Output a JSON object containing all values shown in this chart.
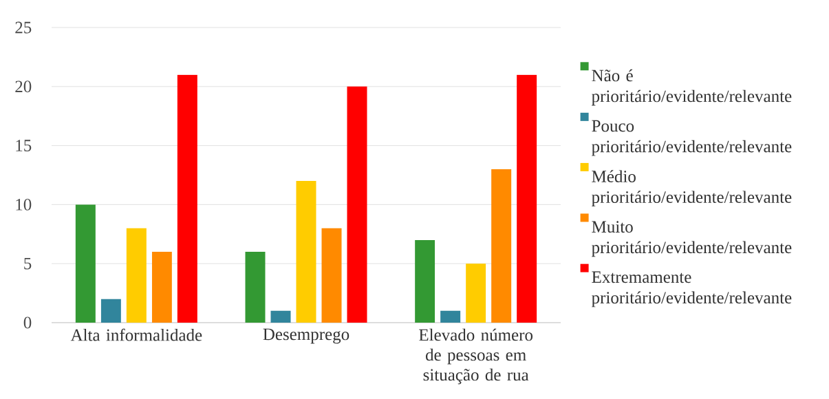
{
  "chart_data": {
    "type": "bar",
    "categories": [
      "Alta informalidade",
      "Desemprego",
      "Elevado número de pessoas em situação de rua"
    ],
    "series": [
      {
        "name": "Não é prioritário/evidente/relevante",
        "color": "#339933",
        "values": [
          10,
          6,
          7
        ]
      },
      {
        "name": "Pouco prioritário/evidente/relevante",
        "color": "#31859c",
        "values": [
          2,
          1,
          1
        ]
      },
      {
        "name": "Médio prioritário/evidente/relevante",
        "color": "#ffcc00",
        "values": [
          8,
          12,
          5
        ]
      },
      {
        "name": "Muito prioritário/evidente/relevante",
        "color": "#ff8a00",
        "values": [
          6,
          8,
          13
        ]
      },
      {
        "name": "Extremamente prioritário/evidente/relevante",
        "color": "#ff0000",
        "values": [
          21,
          20,
          21
        ]
      }
    ],
    "ylim": [
      0,
      25
    ],
    "yticks": [
      0,
      5,
      10,
      15,
      20,
      25
    ],
    "grid": "y",
    "legend": "right"
  }
}
